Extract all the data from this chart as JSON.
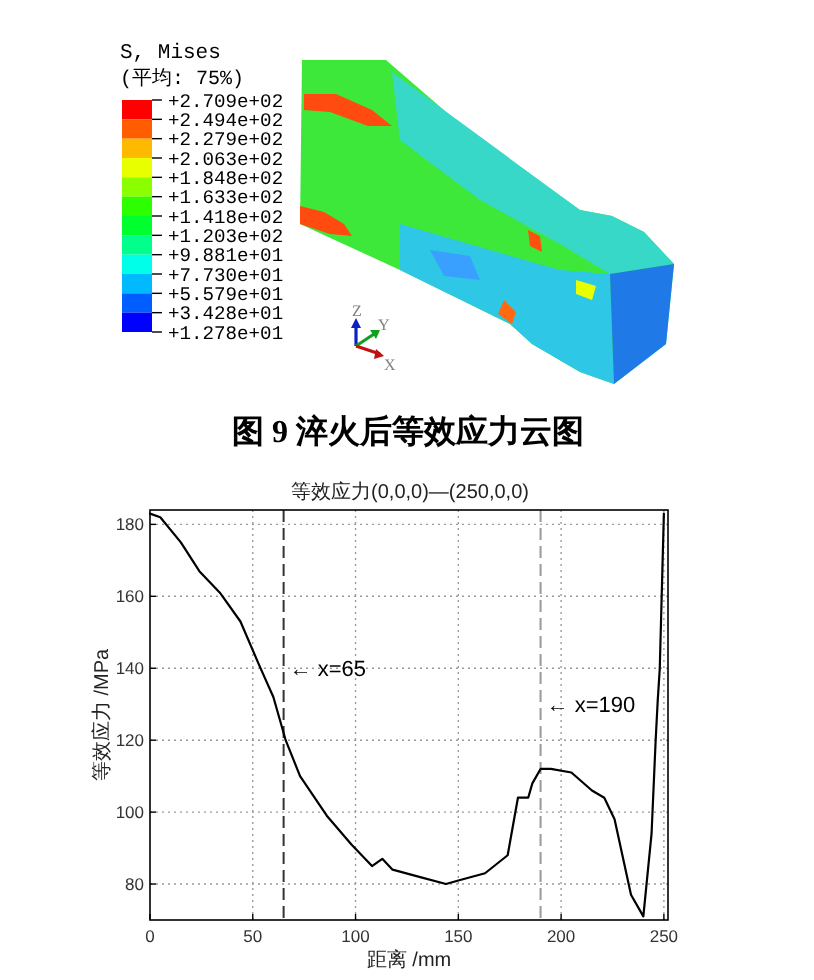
{
  "chart_data": [
    {
      "type": "other",
      "title": "图 9 淬火后等效应力云图",
      "clabel": "S, Mises",
      "subtitle": "(平均: 75%)",
      "categories": [
        "+2.709e+02",
        "+2.494e+02",
        "+2.279e+02",
        "+2.063e+02",
        "+1.848e+02",
        "+1.633e+02",
        "+1.418e+02",
        "+1.203e+02",
        "+9.881e+01",
        "+7.730e+01",
        "+5.579e+01",
        "+3.428e+01",
        "+1.278e+01"
      ],
      "colors": [
        "#ff0000",
        "#ff5d00",
        "#ffb900",
        "#e8ff00",
        "#8bff00",
        "#2eff00",
        "#00ff2e",
        "#00ff8b",
        "#00ffe8",
        "#00b9ff",
        "#005dff",
        "#0000ff"
      ],
      "annotations": [
        "Z",
        "Y",
        "X"
      ]
    },
    {
      "type": "line",
      "title": "等效应力(0,0,0)—(250,0,0)",
      "xlabel": "距离 /mm",
      "ylabel": "等效应力 /MPa",
      "x": [
        0,
        5,
        15,
        24,
        34,
        44,
        53,
        60,
        64,
        66,
        73,
        86,
        98,
        108,
        113,
        118,
        131,
        144,
        150,
        163,
        174,
        179,
        184,
        186,
        190,
        195,
        205,
        215,
        221,
        226,
        234,
        240,
        244,
        246,
        247,
        248,
        250
      ],
      "values": [
        183,
        182,
        175,
        167,
        161,
        153,
        141,
        132,
        124,
        120,
        110,
        99,
        91,
        85,
        87,
        84,
        82,
        80,
        81,
        83,
        88,
        104,
        104,
        108,
        112,
        112,
        111,
        106,
        104,
        98,
        77,
        71,
        94,
        120,
        131,
        140,
        183
      ],
      "color": "#000000",
      "xlim": [
        0,
        252
      ],
      "ylim": [
        70,
        184
      ],
      "xticks": [
        0,
        50,
        100,
        150,
        200,
        250
      ],
      "yticks": [
        80,
        100,
        120,
        140,
        160,
        180
      ],
      "grid": true,
      "ref_lines": [
        {
          "axis": "x",
          "value": 65,
          "label": "← x=65",
          "color": "#333333",
          "line_style": "dashed"
        },
        {
          "axis": "x",
          "value": 190,
          "label": "← x=190",
          "color": "#999999",
          "line_style": "dashed"
        }
      ]
    }
  ]
}
